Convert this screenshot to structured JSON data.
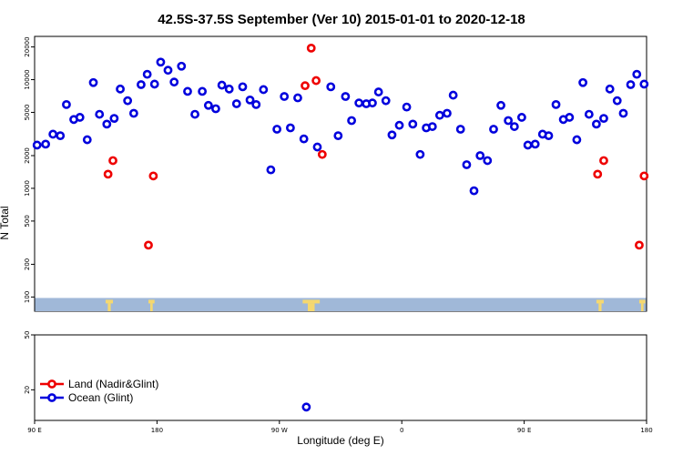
{
  "chart_data": {
    "type": "scatter",
    "title": "42.5S-37.5S September (Ver 10)   2015-01-01 to 2020-12-18",
    "xlabel": "Longitude (deg E)",
    "ylabel": "N Total",
    "y_scale": "log",
    "x_ticks": [
      {
        "pos": 0,
        "label": "90 E"
      },
      {
        "pos": 1,
        "label": "180"
      },
      {
        "pos": 2,
        "label": "90 W"
      },
      {
        "pos": 3,
        "label": "0"
      },
      {
        "pos": 4,
        "label": "90 E"
      },
      {
        "pos": 5,
        "label": "180"
      }
    ],
    "upper_y_ticks": [
      100,
      200,
      500,
      1000,
      2000,
      5000,
      10000,
      20000
    ],
    "lower_y_ticks": [
      20,
      50
    ],
    "xlim": [
      0,
      5
    ],
    "upper_ylim": [
      74,
      25000
    ],
    "lower_ylim": [
      12,
      50
    ],
    "legend": [
      {
        "label": "Land (Nadir&Glint)",
        "color": "#ee0000"
      },
      {
        "label": "Ocean (Glint)",
        "color": "#0000dd"
      }
    ],
    "series": [
      {
        "name": "Ocean (Glint)",
        "color": "#0000dd",
        "points": [
          {
            "x": 0.02,
            "y": 2500
          },
          {
            "x": 0.09,
            "y": 2550
          },
          {
            "x": 0.15,
            "y": 3150
          },
          {
            "x": 0.21,
            "y": 3050
          },
          {
            "x": 0.26,
            "y": 5900
          },
          {
            "x": 0.32,
            "y": 4300
          },
          {
            "x": 0.37,
            "y": 4500
          },
          {
            "x": 0.43,
            "y": 2800
          },
          {
            "x": 0.48,
            "y": 9400
          },
          {
            "x": 0.53,
            "y": 4800
          },
          {
            "x": 0.59,
            "y": 3900
          },
          {
            "x": 0.65,
            "y": 4400
          },
          {
            "x": 0.7,
            "y": 8200
          },
          {
            "x": 0.76,
            "y": 6400
          },
          {
            "x": 0.81,
            "y": 4900
          },
          {
            "x": 0.87,
            "y": 9000
          },
          {
            "x": 0.92,
            "y": 11200
          },
          {
            "x": 0.98,
            "y": 9100
          },
          {
            "x": 1.03,
            "y": 14500
          },
          {
            "x": 1.09,
            "y": 12200
          },
          {
            "x": 1.14,
            "y": 9500
          },
          {
            "x": 1.2,
            "y": 13300
          },
          {
            "x": 1.25,
            "y": 7800
          },
          {
            "x": 1.31,
            "y": 4800
          },
          {
            "x": 1.37,
            "y": 7800
          },
          {
            "x": 1.42,
            "y": 5800
          },
          {
            "x": 1.48,
            "y": 5400
          },
          {
            "x": 1.53,
            "y": 8900
          },
          {
            "x": 1.59,
            "y": 8200
          },
          {
            "x": 1.65,
            "y": 6000
          },
          {
            "x": 1.7,
            "y": 8600
          },
          {
            "x": 1.76,
            "y": 6500
          },
          {
            "x": 1.81,
            "y": 5900
          },
          {
            "x": 1.87,
            "y": 8100
          },
          {
            "x": 1.93,
            "y": 1480
          },
          {
            "x": 1.98,
            "y": 3500
          },
          {
            "x": 2.04,
            "y": 7000
          },
          {
            "x": 2.09,
            "y": 3600
          },
          {
            "x": 2.15,
            "y": 6800
          },
          {
            "x": 2.2,
            "y": 2850
          },
          {
            "x": 2.31,
            "y": 2400
          },
          {
            "x": 2.42,
            "y": 8600
          },
          {
            "x": 2.48,
            "y": 3050
          },
          {
            "x": 2.54,
            "y": 7000
          },
          {
            "x": 2.59,
            "y": 4200
          },
          {
            "x": 2.65,
            "y": 6100
          },
          {
            "x": 2.71,
            "y": 6000
          },
          {
            "x": 2.76,
            "y": 6100
          },
          {
            "x": 2.81,
            "y": 7700
          },
          {
            "x": 2.87,
            "y": 6400
          },
          {
            "x": 2.92,
            "y": 3100
          },
          {
            "x": 2.98,
            "y": 3800
          },
          {
            "x": 3.04,
            "y": 5600
          },
          {
            "x": 3.09,
            "y": 3900
          },
          {
            "x": 3.15,
            "y": 2050
          },
          {
            "x": 3.2,
            "y": 3600
          },
          {
            "x": 3.25,
            "y": 3700
          },
          {
            "x": 3.31,
            "y": 4700
          },
          {
            "x": 3.37,
            "y": 4900
          },
          {
            "x": 3.42,
            "y": 7200
          },
          {
            "x": 3.48,
            "y": 3500
          },
          {
            "x": 3.53,
            "y": 1650
          },
          {
            "x": 3.59,
            "y": 950
          },
          {
            "x": 3.64,
            "y": 2000
          },
          {
            "x": 3.7,
            "y": 1800
          },
          {
            "x": 3.75,
            "y": 3500
          },
          {
            "x": 3.81,
            "y": 5800
          },
          {
            "x": 3.87,
            "y": 4200
          },
          {
            "x": 3.92,
            "y": 3700
          },
          {
            "x": 3.98,
            "y": 4500
          },
          {
            "x": 4.03,
            "y": 2500
          },
          {
            "x": 4.09,
            "y": 2550
          },
          {
            "x": 4.15,
            "y": 3150
          },
          {
            "x": 4.2,
            "y": 3050
          },
          {
            "x": 4.26,
            "y": 5900
          },
          {
            "x": 4.32,
            "y": 4300
          },
          {
            "x": 4.37,
            "y": 4500
          },
          {
            "x": 4.43,
            "y": 2800
          },
          {
            "x": 4.48,
            "y": 9400
          },
          {
            "x": 4.53,
            "y": 4800
          },
          {
            "x": 4.59,
            "y": 3900
          },
          {
            "x": 4.65,
            "y": 4400
          },
          {
            "x": 4.7,
            "y": 8200
          },
          {
            "x": 4.76,
            "y": 6400
          },
          {
            "x": 4.81,
            "y": 4900
          },
          {
            "x": 4.87,
            "y": 9000
          },
          {
            "x": 4.92,
            "y": 11200
          },
          {
            "x": 4.98,
            "y": 9100
          }
        ]
      },
      {
        "name": "Land (Nadir&Glint)",
        "color": "#ee0000",
        "points": [
          {
            "x": 0.6,
            "y": 1350
          },
          {
            "x": 0.64,
            "y": 1800
          },
          {
            "x": 0.93,
            "y": 300
          },
          {
            "x": 0.97,
            "y": 1300
          },
          {
            "x": 2.21,
            "y": 8800
          },
          {
            "x": 2.26,
            "y": 19500
          },
          {
            "x": 2.3,
            "y": 9800
          },
          {
            "x": 2.35,
            "y": 2050
          },
          {
            "x": 4.6,
            "y": 1350
          },
          {
            "x": 4.65,
            "y": 1800
          },
          {
            "x": 4.94,
            "y": 300
          },
          {
            "x": 4.98,
            "y": 1300
          }
        ]
      }
    ],
    "lower_panel_points": [
      {
        "x": 2.22,
        "y": 15,
        "series": "Ocean (Glint)"
      }
    ],
    "land_band": {
      "y_range": [
        74,
        98
      ],
      "band_color": "#a0b8d8",
      "land_color": "#f5d870",
      "land_x_ranges": [
        [
          0.58,
          0.64
        ],
        [
          0.93,
          0.98
        ],
        [
          2.19,
          2.33
        ],
        [
          4.59,
          4.65
        ],
        [
          4.94,
          4.99
        ]
      ]
    }
  }
}
